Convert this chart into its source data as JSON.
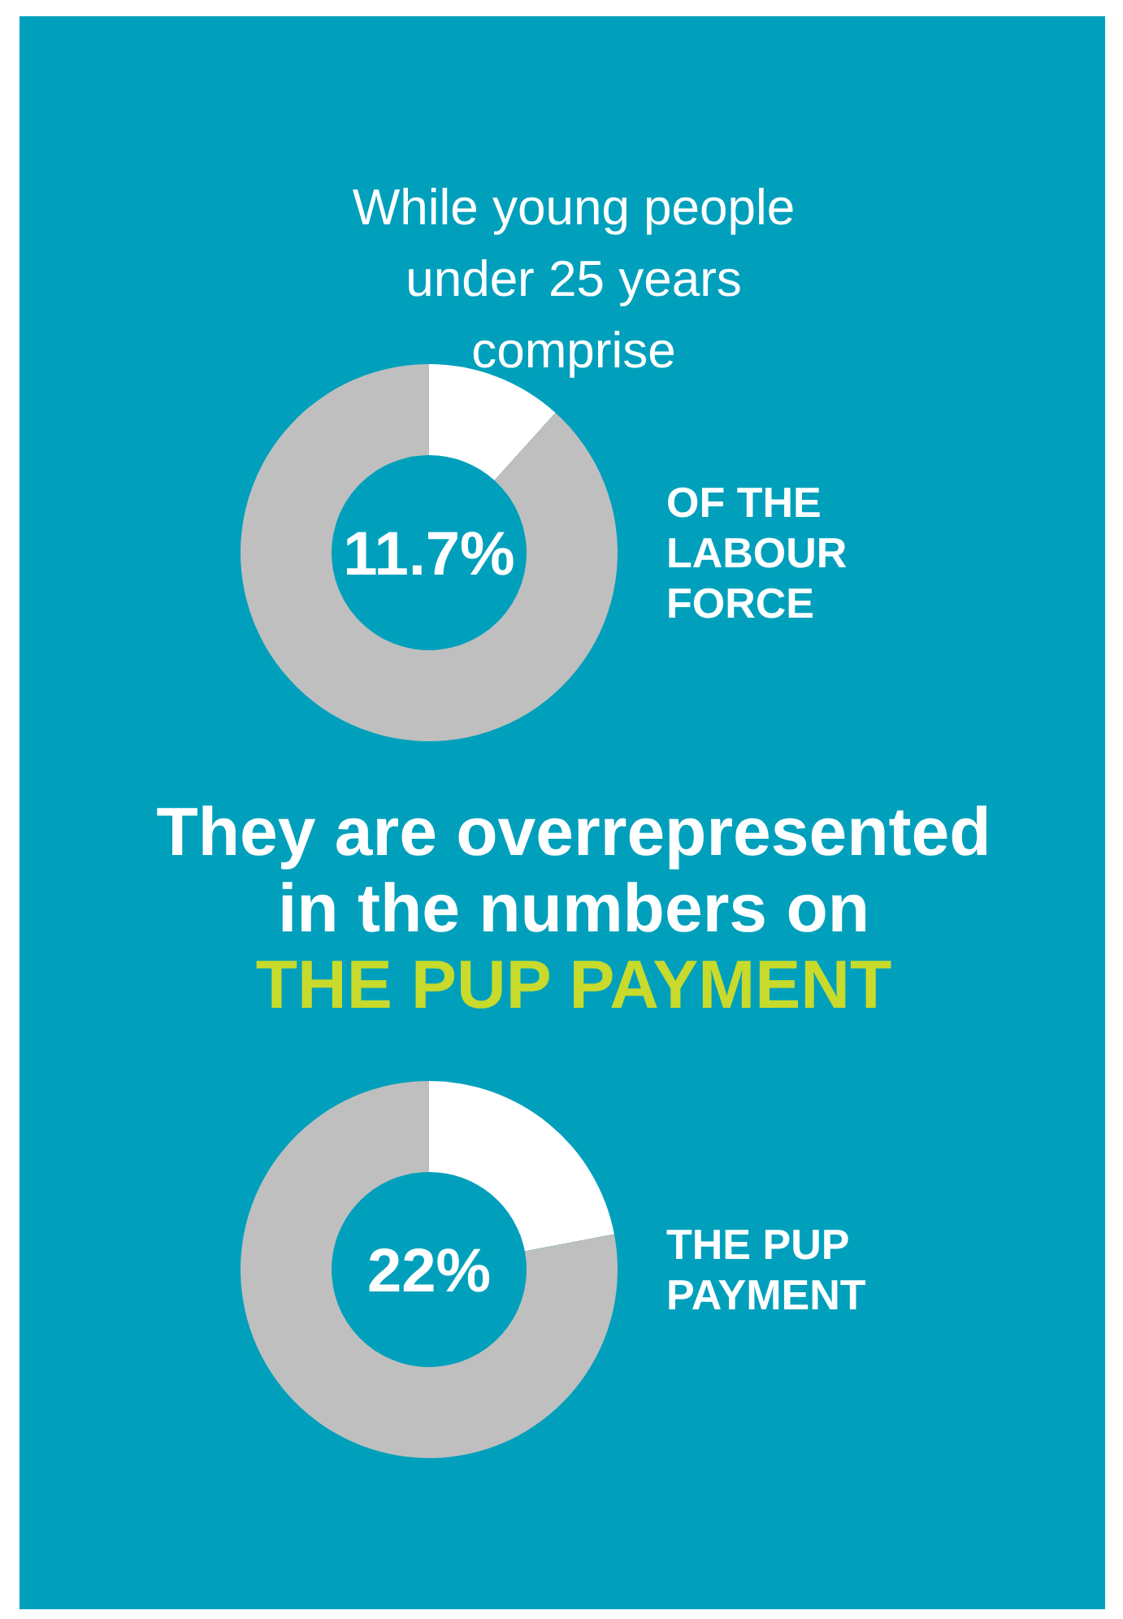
{
  "chart_data": [
    {
      "type": "donut",
      "title": "While young people under 25 years comprise",
      "categories": [
        null,
        null
      ],
      "values": [
        11.7,
        88.3
      ],
      "colors": [
        "#ffffff",
        "#bfbfbf"
      ],
      "annotations": [
        "11.7%",
        "OF THE LABOUR FORCE"
      ]
    },
    {
      "type": "donut",
      "title": "They are overrepresented in the numbers on",
      "subtitle": "THE PUP PAYMENT",
      "categories": [
        null,
        null
      ],
      "values": [
        22,
        78
      ],
      "colors": [
        "#ffffff",
        "#bfbfbf"
      ],
      "annotations": [
        "22%",
        "THE PUP PAYMENT"
      ]
    }
  ]
}
